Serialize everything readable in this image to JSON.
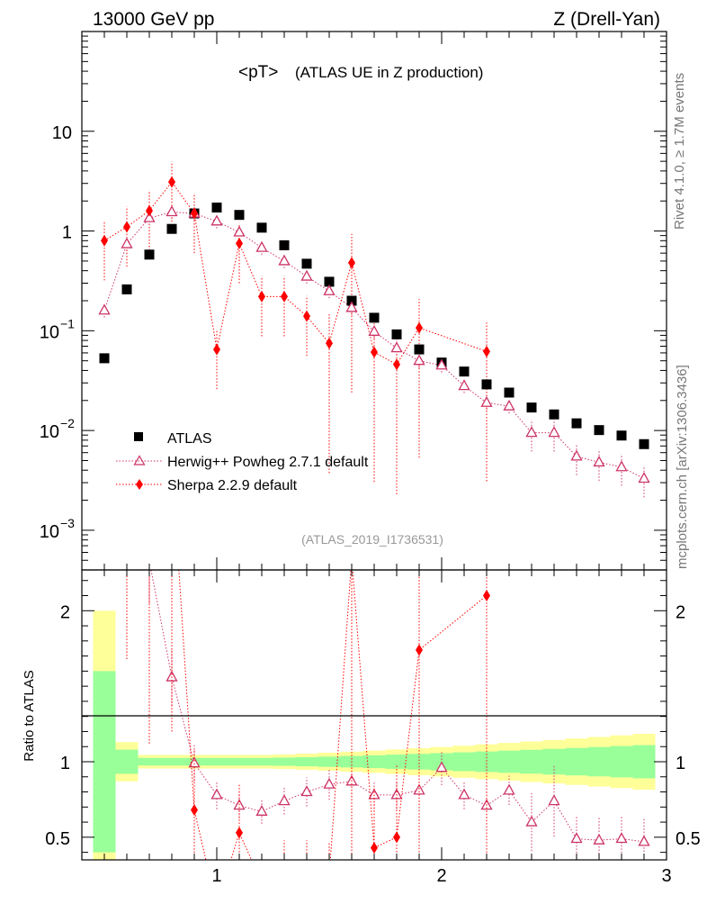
{
  "header": {
    "left": "13000 GeV pp",
    "right": "Z (Drell-Yan)"
  },
  "side_text": {
    "rivet": "Rivet 4.1.0, ≥ 1.7M events",
    "mcplots": "mcplots.cern.ch [arXiv:1306.3436]"
  },
  "chart_data": {
    "type": "scatter",
    "title": "<pT> (ATLAS UE in Z production)",
    "title_main": "<pT>",
    "title_sub": "(ATLAS UE in Z production)",
    "watermark": "(ATLAS_2019_I1736531)",
    "xlim": [
      0.4,
      3.0
    ],
    "x_ticks": [
      "1",
      "2",
      "3"
    ],
    "main_panel": {
      "yscale": "log",
      "ylim": [
        0.0004,
        100
      ],
      "y_tick_labels": [
        {
          "value": 10,
          "base": "10",
          "exp": ""
        },
        {
          "value": 1,
          "base": "1",
          "exp": ""
        },
        {
          "value": 0.1,
          "base": "10",
          "exp": "−1"
        },
        {
          "value": 0.01,
          "base": "10",
          "exp": "−2"
        },
        {
          "value": 0.001,
          "base": "10",
          "exp": "−3"
        }
      ]
    },
    "ratio_panel": {
      "ylabel": "Ratio to ATLAS",
      "ylim": [
        0.35,
        2.27
      ],
      "y_ticks": [
        "0.5",
        "1",
        "2"
      ]
    },
    "legend": [
      "ATLAS",
      "Herwig++ Powheg 2.7.1 default",
      "Sherpa 2.2.9 default"
    ],
    "series": [
      {
        "name": "ATLAS",
        "color": "#000000",
        "marker": "square",
        "x": [
          0.5,
          0.6,
          0.7,
          0.8,
          0.9,
          1.0,
          1.1,
          1.2,
          1.3,
          1.4,
          1.5,
          1.6,
          1.7,
          1.8,
          1.9,
          2.0,
          2.1,
          2.2,
          2.3,
          2.4,
          2.5,
          2.6,
          2.7,
          2.8,
          2.9
        ],
        "y": [
          0.053,
          0.26,
          0.58,
          1.05,
          1.5,
          1.72,
          1.45,
          1.08,
          0.72,
          0.47,
          0.31,
          0.2,
          0.135,
          0.092,
          0.065,
          0.048,
          0.039,
          0.029,
          0.024,
          0.017,
          0.0145,
          0.0118,
          0.0101,
          0.0089,
          0.0073
        ]
      },
      {
        "name": "Herwig++ Powheg 2.7.1 default",
        "color": "#cc3366",
        "marker": "open-triangle",
        "x": [
          0.5,
          0.6,
          0.7,
          0.8,
          0.9,
          1.0,
          1.1,
          1.2,
          1.3,
          1.4,
          1.5,
          1.6,
          1.7,
          1.8,
          1.9,
          2.0,
          2.1,
          2.2,
          2.3,
          2.4,
          2.5,
          2.6,
          2.7,
          2.8,
          2.9
        ],
        "y": [
          0.16,
          0.74,
          1.35,
          1.55,
          1.5,
          1.25,
          0.97,
          0.68,
          0.5,
          0.35,
          0.25,
          0.17,
          0.098,
          0.067,
          0.05,
          0.045,
          0.028,
          0.019,
          0.0175,
          0.0095,
          0.0095,
          0.0055,
          0.0048,
          0.0043,
          0.0033
        ],
        "ratio": [
          3.0,
          2.85,
          2.33,
          1.56,
          0.99,
          0.78,
          0.71,
          0.67,
          0.74,
          0.8,
          0.85,
          0.87,
          0.78,
          0.78,
          0.81,
          0.96,
          0.78,
          0.71,
          0.81,
          0.6,
          0.74,
          0.49,
          0.48,
          0.49,
          0.47
        ]
      },
      {
        "name": "Sherpa 2.2.9 default",
        "color": "#ff0000",
        "marker": "diamond",
        "x": [
          0.5,
          0.6,
          0.7,
          0.8,
          0.9,
          1.0,
          1.1,
          1.2,
          1.3,
          1.4,
          1.5,
          1.6,
          1.7,
          1.8,
          1.9,
          2.2
        ],
        "y": [
          0.8,
          1.1,
          1.6,
          3.1,
          1.5,
          0.065,
          0.75,
          0.22,
          0.22,
          0.14,
          0.075,
          0.48,
          0.061,
          0.046,
          0.107,
          0.062
        ],
        "ratio": [
          15.0,
          4.2,
          2.8,
          3.0,
          0.68,
          0.04,
          0.53,
          0.2,
          0.3,
          0.3,
          0.24,
          2.35,
          0.43,
          0.5,
          1.74,
          2.1
        ]
      }
    ]
  }
}
